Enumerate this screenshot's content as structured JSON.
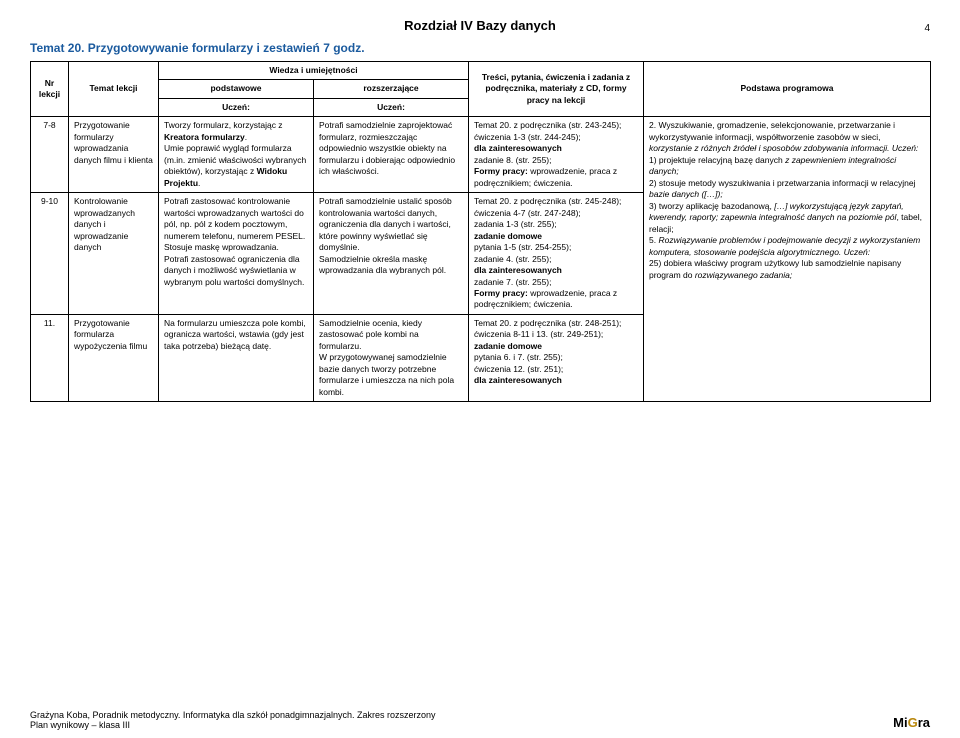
{
  "page_number": "4",
  "chapter_title": "Rozdział IV Bazy danych",
  "topic_title": "Temat 20. Przygotowywanie formularzy i zestawień 7 godz.",
  "headers": {
    "nr": "Nr lekcji",
    "temat": "Temat lekcji",
    "wiedza": "Wiedza i umiejętności",
    "podstawowe": "podstawowe",
    "rozszerzajace": "rozszerzające",
    "uczen": "Uczeń:",
    "tresci": "Treści, pytania, ćwiczenia i zadania z podręcznika, materiały z CD, formy pracy na lekcji",
    "podstawa": "Podstawa programowa"
  },
  "rows": [
    {
      "nr": "7-8",
      "temat": "Przygotowanie formularzy wprowadzania danych filmu i klienta",
      "basic": "Tworzy formularz, korzystając z <b>Kreatora formularzy</b>.<br>Umie poprawić wygląd formularza (m.in. zmienić właściwości wybranych obiektów), korzystając z <b>Widoku Projektu</b>.",
      "ext": "Potrafi samodzielnie zaprojektować formularz, rozmieszczając odpowiednio wszystkie obiekty na formularzu i dobierając odpowiednio ich właściwości.",
      "content": "Temat 20. z podręcznika (str. 243-245);<br>ćwiczenia 1-3 (str. 244-245);<br><b>dla zainteresowanych</b><br>zadanie 8. (str. 255);<br><b>Formy pracy:</b> wprowadzenie, praca z podręcznikiem; ćwiczenia."
    },
    {
      "nr": "9-10",
      "temat": "Kontrolowanie wprowadzanych danych i wprowadzanie danych",
      "basic": "Potrafi zastosować kontrolowanie wartości wprowadzanych wartości do pól, np. pól z kodem pocztowym, numerem telefonu, numerem PESEL. Stosuje maskę wprowadzania.<br>Potrafi zastosować ograniczenia dla danych i możliwość wyświetlania w wybranym polu wartości domyślnych.",
      "ext": "Potrafi samodzielnie ustalić sposób kontrolowania wartości danych, ograniczenia dla danych i wartości, które powinny wyświetlać się domyślnie.<br>Samodzielnie określa maskę wprowadzania dla wybranych pól.",
      "content": "Temat 20. z podręcznika (str. 245-248);<br>ćwiczenia 4-7 (str. 247-248);<br>zadania 1-3 (str. 255);<br><b>zadanie domowe</b><br>pytania 1-5 (str. 254-255);<br>zadanie 4. (str. 255);<br><b>dla zainteresowanych</b><br>zadanie 7. (str. 255);<br><b>Formy pracy:</b> wprowadzenie, praca z podręcznikiem; ćwiczenia."
    },
    {
      "nr": "11.",
      "temat": "Przygotowanie formularza wypożyczenia filmu",
      "basic": "Na formularzu umieszcza pole kombi, ogranicza wartości, wstawia (gdy jest taka potrzeba) bieżącą datę.",
      "ext": "Samodzielnie ocenia, kiedy zastosować pole kombi na formularzu.<br>W przygotowywanej samodzielnie bazie danych tworzy potrzebne formularze i umieszcza na nich pola kombi.",
      "content": "Temat 20. z podręcznika (str. 248-251);<br>ćwiczenia 8-11 i 13. (str. 249-251);<br><b>zadanie domowe</b><br>pytania 6. i 7. (str. 255);<br>ćwiczenia 12. (str. 251);<br><b>dla zainteresowanych</b>"
    }
  ],
  "program": "2. Wyszukiwanie, gromadzenie, selekcjonowanie, przetwarzanie i wykorzystywanie informacji, współtworzenie zasobów w sieci, <i>korzystanie z różnych źródeł i sposobów zdobywania informacji. Uczeń:</i><br>1) projektuje relacyjną bazę danych <i>z zapewnieniem integralności danych;</i><br>2) stosuje metody wyszukiwania i przetwarzania informacji w relacyjnej <i>bazie danych ([…]);</i><br>3) tworzy aplikację bazodanową, <i>[…] wykorzystującą język zapytań, kwerendy, raporty; zapewnia integralność danych na poziomie pól</i>, tabel, relacji;<br>5. <i>Rozwiązywanie problemów i podejmowanie decyzji z wykorzystaniem komputera, stosowanie podejścia algorytmicznego. Uczeń:</i><br>25) dobiera właściwy program użytkowy lub samodzielnie napisany program do <i>rozwiązywanego zadania;</i>",
  "footer_line1": "Grażyna Koba, Poradnik metodyczny. Informatyka dla szkół ponadgimnazjalnych. Zakres rozszerzony",
  "footer_line2": "Plan wynikowy – klasa III",
  "logo": {
    "mi": "Mi",
    "g": "G",
    "ra": "ra"
  }
}
